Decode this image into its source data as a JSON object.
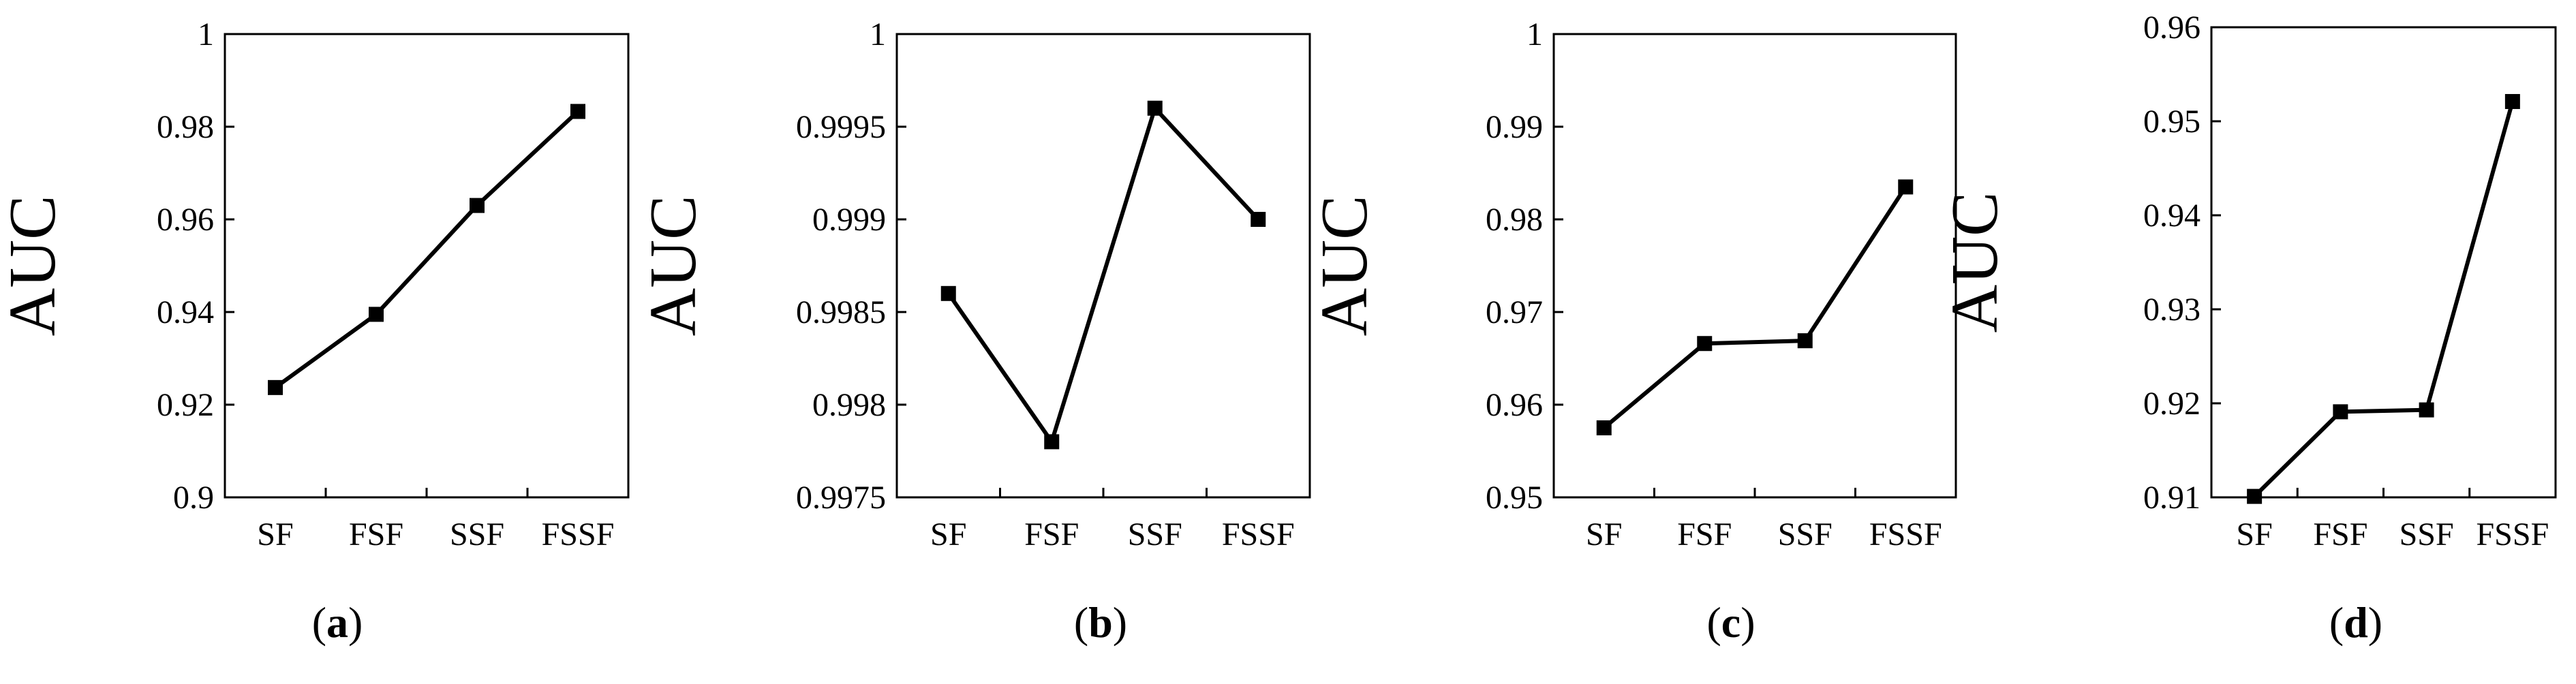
{
  "figure": {
    "charts": [
      "a",
      "b",
      "c",
      "d"
    ]
  },
  "chart_data": [
    {
      "type": "line",
      "panel_label": "a",
      "title": "",
      "xlabel": "",
      "ylabel": "AUC",
      "categories": [
        "SF",
        "FSF",
        "SSF",
        "FSSF"
      ],
      "series": [
        {
          "values": [
            0.9237,
            0.9395,
            0.963,
            0.9833
          ]
        }
      ],
      "ylim": [
        0.9,
        1.0
      ],
      "yticks": [
        0.9,
        0.92,
        0.94,
        0.96,
        0.98,
        1.0
      ],
      "ytick_labels": [
        "0.9",
        "0.92",
        "0.94",
        "0.96",
        "0.98",
        "1"
      ],
      "grid": false,
      "marker": "square",
      "color": "#000000"
    },
    {
      "type": "line",
      "panel_label": "b",
      "title": "",
      "xlabel": "",
      "ylabel": "AUC",
      "categories": [
        "SF",
        "FSF",
        "SSF",
        "FSSF"
      ],
      "series": [
        {
          "values": [
            0.9986,
            0.9978,
            0.9996,
            0.999
          ]
        }
      ],
      "ylim": [
        0.9975,
        1.0
      ],
      "yticks": [
        0.9975,
        0.998,
        0.9985,
        0.999,
        0.9995,
        1.0
      ],
      "ytick_labels": [
        "0.9975",
        "0.998",
        "0.9985",
        "0.999",
        "0.9995",
        "1"
      ],
      "grid": false,
      "marker": "square",
      "color": "#000000"
    },
    {
      "type": "line",
      "panel_label": "c",
      "title": "",
      "xlabel": "",
      "ylabel": "AUC",
      "categories": [
        "SF",
        "FSF",
        "SSF",
        "FSSF"
      ],
      "series": [
        {
          "values": [
            0.9575,
            0.9666,
            0.9669,
            0.9835
          ]
        }
      ],
      "ylim": [
        0.95,
        1.0
      ],
      "yticks": [
        0.95,
        0.96,
        0.97,
        0.98,
        0.99,
        1.0
      ],
      "ytick_labels": [
        "0.95",
        "0.96",
        "0.97",
        "0.98",
        "0.99",
        "1"
      ],
      "grid": false,
      "marker": "square",
      "color": "#000000"
    },
    {
      "type": "line",
      "panel_label": "d",
      "title": "",
      "xlabel": "",
      "ylabel": "AUC",
      "categories": [
        "SF",
        "FSF",
        "SSF",
        "FSSF"
      ],
      "series": [
        {
          "values": [
            0.9101,
            0.9191,
            0.9193,
            0.9521
          ]
        }
      ],
      "ylim": [
        0.91,
        0.96
      ],
      "yticks": [
        0.91,
        0.92,
        0.93,
        0.94,
        0.95,
        0.96
      ],
      "ytick_labels": [
        "0.91",
        "0.92",
        "0.93",
        "0.94",
        "0.95",
        "0.96"
      ],
      "grid": false,
      "marker": "square",
      "color": "#000000"
    }
  ]
}
